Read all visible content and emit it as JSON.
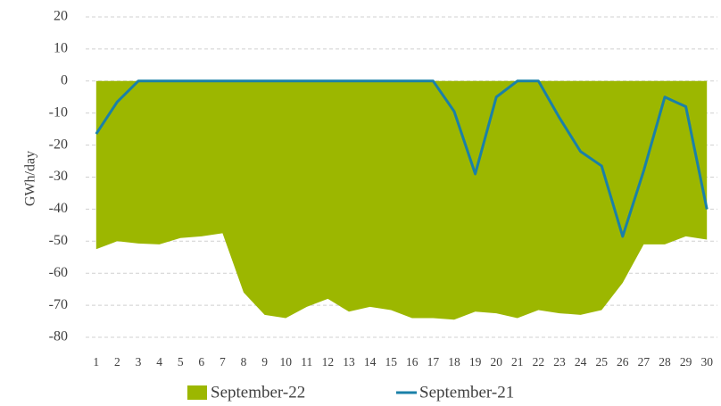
{
  "chart_data": {
    "type": "area-line",
    "y_label": "GWh/day",
    "categories": [
      "1",
      "2",
      "3",
      "4",
      "5",
      "6",
      "7",
      "8",
      "9",
      "10",
      "11",
      "12",
      "13",
      "14",
      "15",
      "16",
      "17",
      "18",
      "19",
      "20",
      "21",
      "22",
      "23",
      "24",
      "25",
      "26",
      "27",
      "28",
      "29",
      "30"
    ],
    "series": [
      {
        "name": "September-22",
        "color": "#9cb700",
        "kind": "area",
        "values": [
          -52.5,
          -50,
          -50.7,
          -51,
          -49,
          -48.5,
          -47.5,
          -66,
          -73,
          -74,
          -70.5,
          -68,
          -72,
          -70.5,
          -71.5,
          -74,
          -74,
          -74.5,
          -72,
          -72.5,
          -74,
          -71.5,
          -72.5,
          -73,
          -71.5,
          -63,
          -51,
          -51,
          -48.5,
          -49.5
        ]
      },
      {
        "name": "September-21",
        "color": "#1a80a8",
        "kind": "line",
        "values": [
          -16.5,
          -6.5,
          0,
          0,
          0,
          0,
          0,
          0,
          0,
          0,
          0,
          0,
          0,
          0,
          0,
          0,
          0,
          -9.5,
          -29,
          -5,
          0,
          0,
          -11.5,
          -22,
          -26.5,
          -48.5,
          -28,
          -5,
          -8,
          -40
        ]
      }
    ],
    "ylim": [
      -80,
      20
    ],
    "yticks": [
      -80,
      -70,
      -60,
      -50,
      -40,
      -30,
      -20,
      -10,
      0,
      10,
      20
    ],
    "grid": true
  }
}
